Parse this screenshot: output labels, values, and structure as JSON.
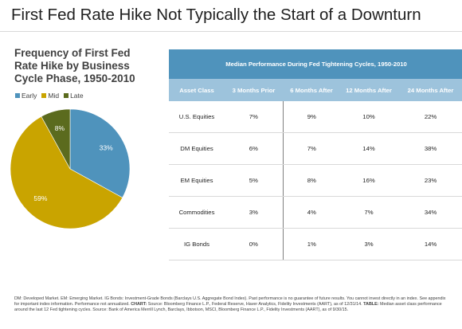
{
  "title": "First Fed Rate Hike Not Typically the Start of a Downturn",
  "chart_data": {
    "type": "pie",
    "title": "Frequency of First Fed Rate Hike by Business Cycle Phase, 1950-2010",
    "categories": [
      "Early",
      "Mid",
      "Late"
    ],
    "values": [
      33,
      59,
      8
    ],
    "value_labels": [
      "33%",
      "59%",
      "8%"
    ],
    "colors": [
      "#4f93bc",
      "#c9a400",
      "#5b6b1e"
    ],
    "legend_position": "top-left"
  },
  "table": {
    "title": "Median Performance During Fed Tightening Cycles, 1950-2010",
    "columns": [
      "Asset Class",
      "3 Months Prior",
      "6 Months After",
      "12 Months After",
      "24 Months After"
    ],
    "rows": [
      [
        "U.S. Equities",
        "7%",
        "9%",
        "10%",
        "22%"
      ],
      [
        "DM Equities",
        "6%",
        "7%",
        "14%",
        "38%"
      ],
      [
        "EM Equities",
        "5%",
        "8%",
        "16%",
        "23%"
      ],
      [
        "Commodities",
        "3%",
        "4%",
        "7%",
        "34%"
      ],
      [
        "IG Bonds",
        "0%",
        "1%",
        "3%",
        "14%"
      ]
    ]
  },
  "footnote": {
    "text1": "DM: Developed Market. EM: Emerging Market. IG Bonds: Investment-Grade Bonds (Barclays U.S. Aggregate Bond Index). Past performance is no guarantee of future results. You cannot invest directly in an index. See appendix for important index information. Performance not annualized.",
    "chart_label": "CHART:",
    "chart_source": "Source: Bloomberg Finance L.P., Federal Reserve, Haver Analytics, Fidelity Investments (AART), as of 12/31/14.",
    "table_label": "TABLE:",
    "table_source": "Median asset class performance around the last 12 Fed tightening cycles. Source: Bank of America Merrill Lynch, Barclays, Ibbotson, MSCI, Bloomberg Finance L.P., Fidelity Investments (AART), as of 9/30/15."
  }
}
